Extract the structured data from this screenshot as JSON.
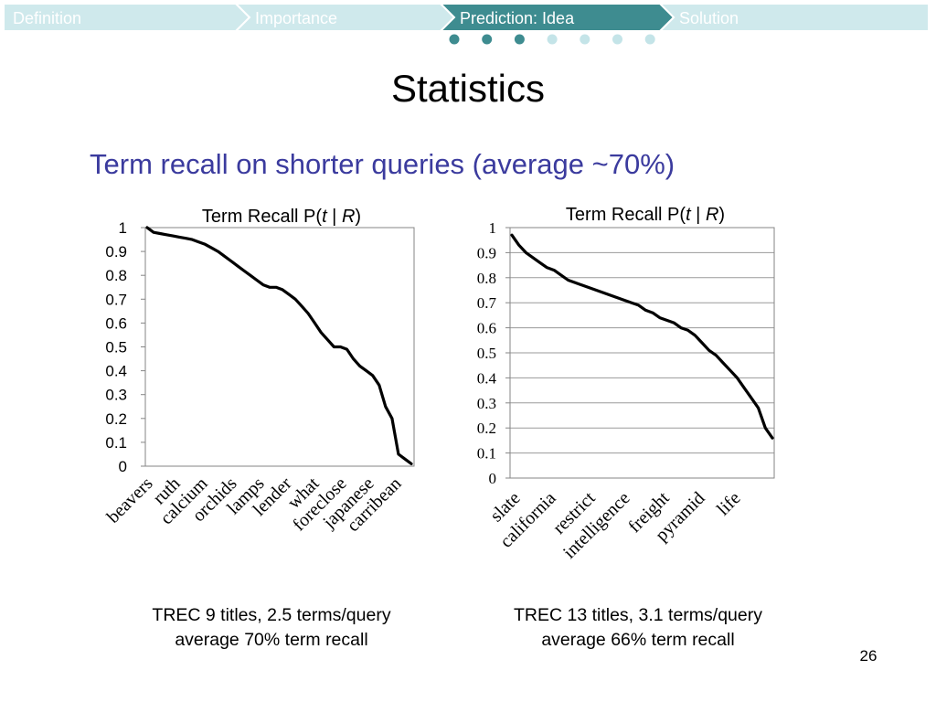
{
  "nav": {
    "tabs": [
      {
        "label": "Definition",
        "active": false
      },
      {
        "label": "Importance",
        "active": false
      },
      {
        "label": "Prediction: Idea",
        "active": true
      },
      {
        "label": "Solution",
        "active": false
      }
    ],
    "colors": {
      "inactive": "#cfe9ec",
      "active": "#3e8c90",
      "inactive_text": "#ffffff",
      "active_text": "#ffffff"
    },
    "progress_dots": {
      "total": 7,
      "filled": 3,
      "filled_color": "#3e8c90",
      "empty_color": "#c4e4e8"
    }
  },
  "slide": {
    "title": "Statistics",
    "subtitle": "Term recall on shorter queries (average ~70%)",
    "slide_number": "26"
  },
  "chart_data": [
    {
      "type": "line",
      "title": "Term Recall  P( t | R )",
      "ylim": [
        0,
        1
      ],
      "yticks": [
        "0",
        "0.1",
        "0.2",
        "0.3",
        "0.4",
        "0.5",
        "0.6",
        "0.7",
        "0.8",
        "0.9",
        "1"
      ],
      "grid": false,
      "xlabels": [
        "beavers",
        "ruth",
        "calcium",
        "orchids",
        "lamps",
        "lender",
        "what",
        "foreclose",
        "japanese",
        "carribean"
      ],
      "series": [
        {
          "values": [
            1.0,
            0.98,
            0.975,
            0.97,
            0.965,
            0.96,
            0.955,
            0.95,
            0.94,
            0.93,
            0.915,
            0.9,
            0.88,
            0.86,
            0.84,
            0.82,
            0.8,
            0.78,
            0.76,
            0.75,
            0.75,
            0.74,
            0.72,
            0.7,
            0.67,
            0.64,
            0.6,
            0.56,
            0.53,
            0.5,
            0.5,
            0.49,
            0.45,
            0.42,
            0.4,
            0.38,
            0.34,
            0.25,
            0.2,
            0.05,
            0.03,
            0.01
          ]
        }
      ],
      "caption": [
        "TREC 9 titles, 2.5 terms/query",
        "average 70% term recall"
      ]
    },
    {
      "type": "line",
      "title": "Term Recall  P( t | R )",
      "ylim": [
        0,
        1
      ],
      "yticks": [
        "0",
        "0.1",
        "0.2",
        "0.3",
        "0.4",
        "0.5",
        "0.6",
        "0.7",
        "0.8",
        "0.9",
        "1"
      ],
      "grid": true,
      "xlabels": [
        "slate",
        "california",
        "restrict",
        "intelligence",
        "freight",
        "pyramid",
        "life"
      ],
      "series": [
        {
          "values": [
            0.97,
            0.93,
            0.9,
            0.88,
            0.86,
            0.84,
            0.83,
            0.81,
            0.79,
            0.78,
            0.77,
            0.76,
            0.75,
            0.74,
            0.73,
            0.72,
            0.71,
            0.7,
            0.69,
            0.67,
            0.66,
            0.64,
            0.63,
            0.62,
            0.6,
            0.59,
            0.57,
            0.54,
            0.51,
            0.49,
            0.46,
            0.43,
            0.4,
            0.36,
            0.32,
            0.28,
            0.2,
            0.16
          ]
        }
      ],
      "caption": [
        "TREC 13 titles, 3.1 terms/query",
        "average 66% term recall"
      ]
    }
  ]
}
